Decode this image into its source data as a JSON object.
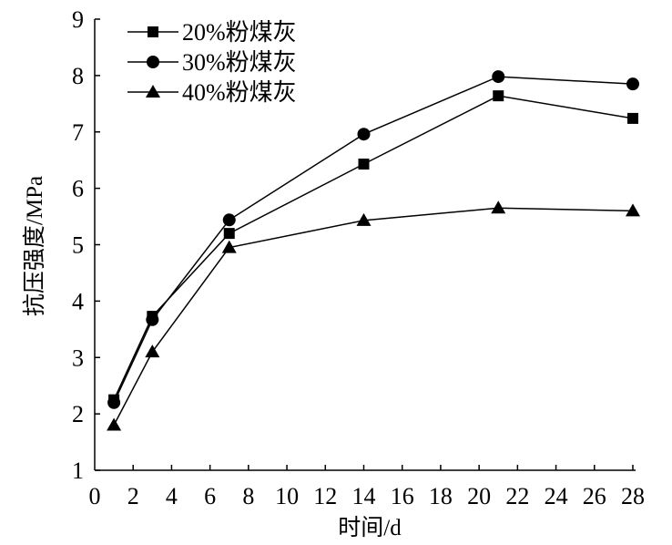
{
  "chart_data": {
    "type": "line",
    "title": "",
    "xlabel": "时间/d",
    "ylabel": "抗压强度/MPa",
    "xlim": [
      0,
      28
    ],
    "ylim": [
      1,
      9
    ],
    "xticks": [
      0,
      2,
      4,
      6,
      8,
      10,
      12,
      14,
      16,
      18,
      20,
      22,
      24,
      26,
      28
    ],
    "yticks": [
      1,
      2,
      3,
      4,
      5,
      6,
      7,
      8,
      9
    ],
    "grid": false,
    "legend_position": "top-left",
    "x": [
      1,
      3,
      7,
      14,
      21,
      28
    ],
    "series": [
      {
        "name": "20%粉煤灰",
        "marker": "square",
        "color": "#000000",
        "values": [
          2.25,
          3.73,
          5.2,
          6.43,
          7.64,
          7.24
        ]
      },
      {
        "name": "30%粉煤灰",
        "marker": "circle",
        "color": "#000000",
        "values": [
          2.2,
          3.67,
          5.44,
          6.96,
          7.98,
          7.85
        ]
      },
      {
        "name": "40%粉煤灰",
        "marker": "triangle",
        "color": "#000000",
        "values": [
          1.8,
          3.1,
          4.95,
          5.43,
          5.65,
          5.6
        ]
      }
    ]
  }
}
